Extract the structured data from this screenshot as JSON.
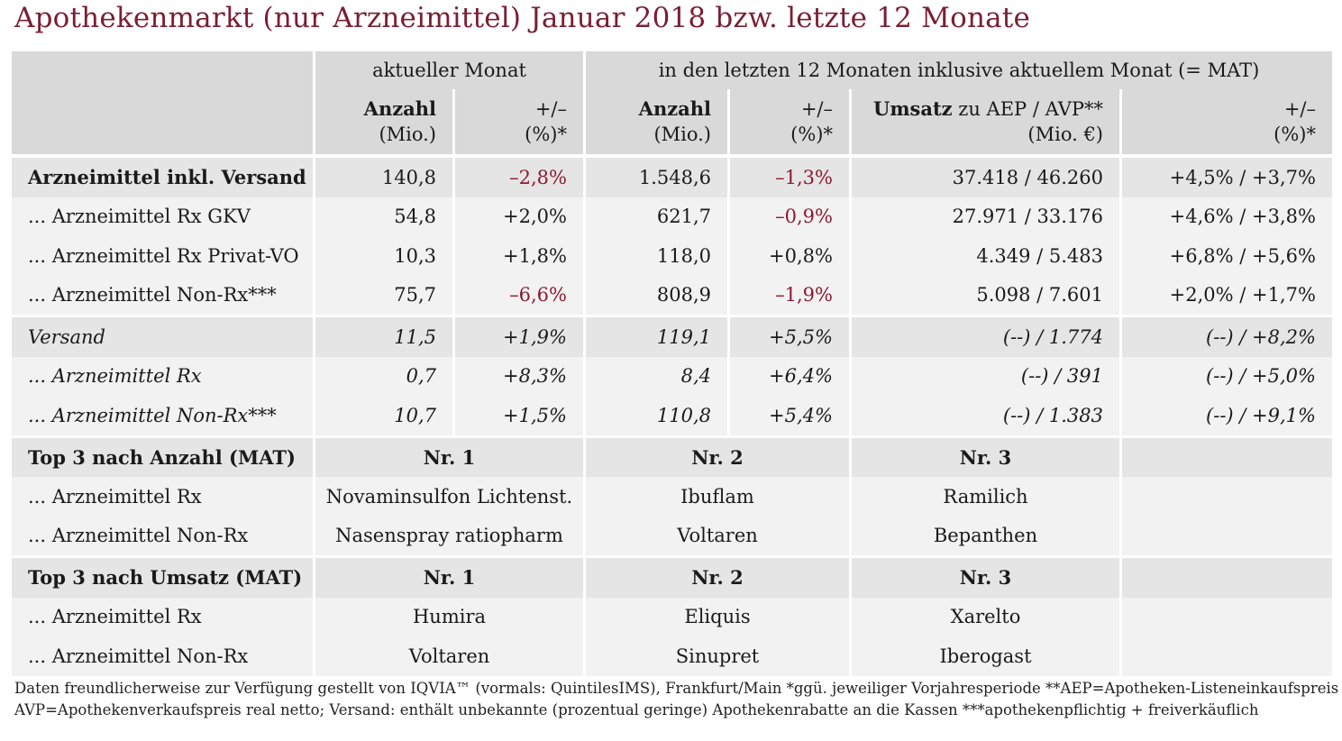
{
  "title": "Apothekenmarkt (nur Arzneimittel) Januar 2018 bzw. letzte 12 Monate",
  "header": {
    "current_month": "aktueller Monat",
    "mat": "in den letzten 12 Monaten inklusive aktuellem Monat (= MAT)",
    "anzahl_label": "Anzahl",
    "anzahl_unit": "(Mio.)",
    "change_label": "+/–",
    "change_unit": "(%)*",
    "umsatz_label": "Umsatz",
    "umsatz_rest": " zu AEP / AVP**",
    "umsatz_unit": "(Mio. €)"
  },
  "rows": [
    {
      "label": "Arzneimittel inkl. Versand",
      "cm_anzahl": "140,8",
      "cm_change": "–2,8%",
      "mat_anzahl": "1.548,6",
      "mat_change": "–1,3%",
      "umsatz": "37.418 / 46.260",
      "umsatz_change": "+4,5% / +3,7%"
    },
    {
      "label": "... Arzneimittel Rx GKV",
      "cm_anzahl": "54,8",
      "cm_change": "+2,0%",
      "mat_anzahl": "621,7",
      "mat_change": "–0,9%",
      "umsatz": "27.971 / 33.176",
      "umsatz_change": "+4,6% / +3,8%"
    },
    {
      "label": "... Arzneimittel Rx Privat-VO",
      "cm_anzahl": "10,3",
      "cm_change": "+1,8%",
      "mat_anzahl": "118,0",
      "mat_change": "+0,8%",
      "umsatz": "4.349 / 5.483",
      "umsatz_change": "+6,8% / +5,6%"
    },
    {
      "label": "... Arzneimittel Non-Rx***",
      "cm_anzahl": "75,7",
      "cm_change": "–6,6%",
      "mat_anzahl": "808,9",
      "mat_change": "–1,9%",
      "umsatz": "5.098 / 7.601",
      "umsatz_change": "+2,0% / +1,7%"
    },
    {
      "label": "Versand",
      "cm_anzahl": "11,5",
      "cm_change": "+1,9%",
      "mat_anzahl": "119,1",
      "mat_change": "+5,5%",
      "umsatz": "(--) / 1.774",
      "umsatz_change": "(--) / +8,2%"
    },
    {
      "label": "... Arzneimittel Rx",
      "cm_anzahl": "0,7",
      "cm_change": "+8,3%",
      "mat_anzahl": "8,4",
      "mat_change": "+6,4%",
      "umsatz": "(--) / 391",
      "umsatz_change": "(--) / +5,0%"
    },
    {
      "label": "... Arzneimittel Non-Rx***",
      "cm_anzahl": "10,7",
      "cm_change": "+1,5%",
      "mat_anzahl": "110,8",
      "mat_change": "+5,4%",
      "umsatz": "(--) / 1.383",
      "umsatz_change": "(--) / +9,1%"
    }
  ],
  "top_anzahl": {
    "label": "Top 3 nach Anzahl (MAT)",
    "nr1": "Nr. 1",
    "nr2": "Nr. 2",
    "nr3": "Nr. 3",
    "rx": {
      "label": "... Arzneimittel Rx",
      "p1": "Novaminsulfon Lichtenst.",
      "p2": "Ibuflam",
      "p3": "Ramilich"
    },
    "nonrx": {
      "label": "... Arzneimittel Non-Rx",
      "p1": "Nasenspray ratiopharm",
      "p2": "Voltaren",
      "p3": "Bepanthen"
    }
  },
  "top_umsatz": {
    "label": "Top 3 nach Umsatz (MAT)",
    "nr1": "Nr. 1",
    "nr2": "Nr. 2",
    "nr3": "Nr. 3",
    "rx": {
      "label": "... Arzneimittel Rx",
      "p1": "Humira",
      "p2": "Eliquis",
      "p3": "Xarelto"
    },
    "nonrx": {
      "label": "... Arzneimittel Non-Rx",
      "p1": "Voltaren",
      "p2": "Sinupret",
      "p3": "Iberogast"
    }
  },
  "footnote": {
    "line1": "Daten freundlicherweise zur Verfügung gestellt von IQVIA™ (vormals: QuintilesIMS), Frankfurt/Main  *ggü. jeweiliger Vorjahresperiode  **AEP=Apotheken-Listeneinkaufspreis netto,",
    "line2": "AVP=Apothekenverkaufspreis real netto; Versand: enthält unbekannte (prozentual geringe) Apothekenrabatte an die Kassen   ***apothekenpflichtig + freiverkäuflich"
  },
  "colors": {
    "title": "#7a1f33",
    "negative": "#8c1a30",
    "header_bg": "#d9d9d9"
  }
}
